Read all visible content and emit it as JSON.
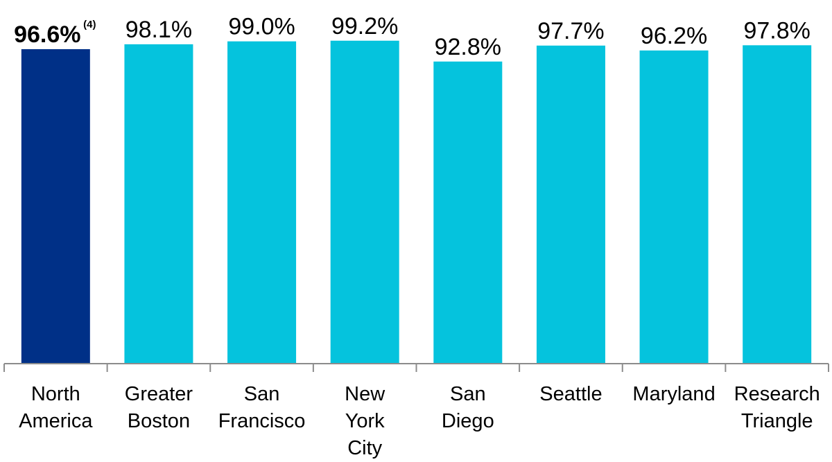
{
  "chart_data": {
    "type": "bar",
    "title": "",
    "xlabel": "",
    "ylabel": "",
    "ylim": [
      0,
      100
    ],
    "grid": false,
    "legend": "none",
    "categories": [
      [
        "North",
        "America"
      ],
      [
        "Greater",
        "Boston"
      ],
      [
        "San",
        "Francisco"
      ],
      [
        "New",
        "York",
        "City"
      ],
      [
        "San",
        "Diego"
      ],
      [
        "Seattle"
      ],
      [
        "Maryland"
      ],
      [
        "Research",
        "Triangle"
      ]
    ],
    "values": [
      96.6,
      98.1,
      99.0,
      99.2,
      92.8,
      97.7,
      96.2,
      97.8
    ],
    "value_labels": [
      "96.6%",
      "98.1%",
      "99.0%",
      "99.2%",
      "92.8%",
      "97.7%",
      "96.2%",
      "97.8%"
    ],
    "annotations": [
      {
        "bar_index": 0,
        "text": "(4)"
      }
    ],
    "highlight_index": 0,
    "colors": {
      "highlight": "#003087",
      "bar": "#05C3DD",
      "axis": "#8C8C8C"
    }
  }
}
